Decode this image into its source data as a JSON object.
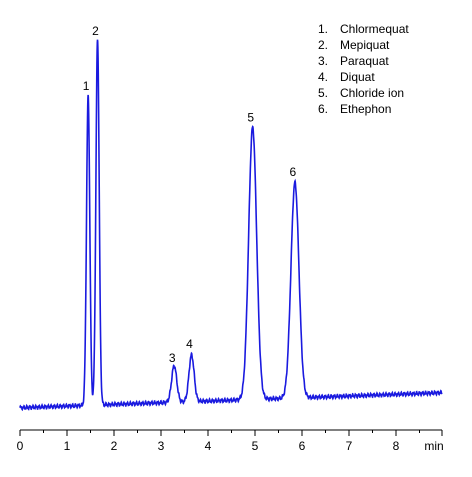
{
  "chart_data": {
    "type": "line",
    "title": "",
    "xlabel": "",
    "ylabel": "",
    "x_unit": "min",
    "xlim": [
      0,
      9
    ],
    "x_ticks": [
      0,
      1,
      2,
      3,
      4,
      5,
      6,
      7,
      8
    ],
    "tick_labels": [
      "0",
      "1",
      "2",
      "3",
      "4",
      "5",
      "6",
      "7",
      "8"
    ],
    "grid": false,
    "line_color": "#1a1adf",
    "legend_placement": "top-right",
    "legend": [
      {
        "number": "1.",
        "name": "Chlormequat"
      },
      {
        "number": "2.",
        "name": "Mepiquat"
      },
      {
        "number": "3.",
        "name": "Paraquat"
      },
      {
        "number": "4.",
        "name": "Diquat"
      },
      {
        "number": "5.",
        "name": "Chloride  ion"
      },
      {
        "number": "6.",
        "name": "Ethephon"
      }
    ],
    "baseline": {
      "start": 0.08,
      "end": 0.45
    },
    "peaks": [
      {
        "label": "1",
        "retention_time": 1.45,
        "height": 7.6,
        "width": 0.035
      },
      {
        "label": "2",
        "retention_time": 1.65,
        "height": 9.0,
        "width": 0.035
      },
      {
        "label": "3",
        "retention_time": 3.28,
        "height": 0.9,
        "width": 0.055
      },
      {
        "label": "4",
        "retention_time": 3.65,
        "height": 1.15,
        "width": 0.055
      },
      {
        "label": "5",
        "retention_time": 4.95,
        "height": 6.7,
        "width": 0.085
      },
      {
        "label": "6",
        "retention_time": 5.85,
        "height": 5.3,
        "width": 0.085
      }
    ],
    "ylim": [
      0,
      9.5
    ]
  }
}
